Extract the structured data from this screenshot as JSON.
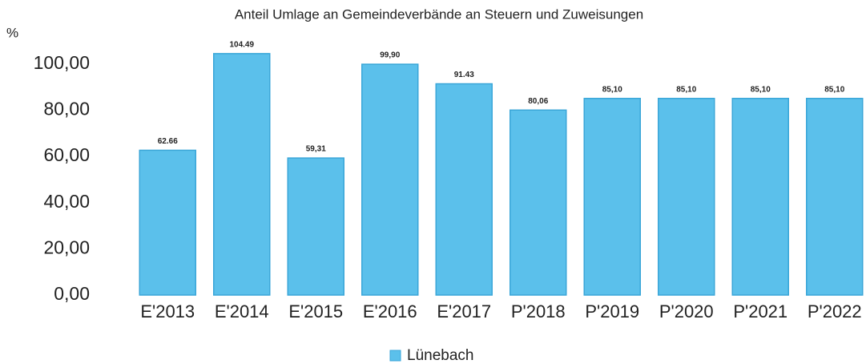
{
  "chart_data": {
    "type": "bar",
    "title": "Anteil Umlage an Gemeindeverbände an Steuern und Zuweisungen",
    "y_label": "%",
    "categories": [
      "E'2013",
      "E'2014",
      "E'2015",
      "E'2016",
      "E'2017",
      "P'2018",
      "P'2019",
      "P'2020",
      "P'2021",
      "P'2022"
    ],
    "series": [
      {
        "name": "Lünebach",
        "color": "#5bc0eb",
        "values": [
          62.66,
          104.49,
          59.31,
          99.9,
          91.43,
          80.06,
          85.1,
          85.1,
          85.1,
          85.1
        ],
        "value_labels": [
          "62.66",
          "104.49",
          "59,31",
          "99,90",
          "91.43",
          "80,06",
          "85,10",
          "85,10",
          "85,10",
          "85,10"
        ]
      }
    ],
    "ylim": [
      0,
      110
    ],
    "yticks": [
      {
        "value": 0,
        "label": "0,00"
      },
      {
        "value": 20,
        "label": "20,00"
      },
      {
        "value": 40,
        "label": "40,00"
      },
      {
        "value": 60,
        "label": "60,00"
      },
      {
        "value": 80,
        "label": "80,00"
      },
      {
        "value": 100,
        "label": "100,00"
      }
    ],
    "legend": "bottom"
  }
}
